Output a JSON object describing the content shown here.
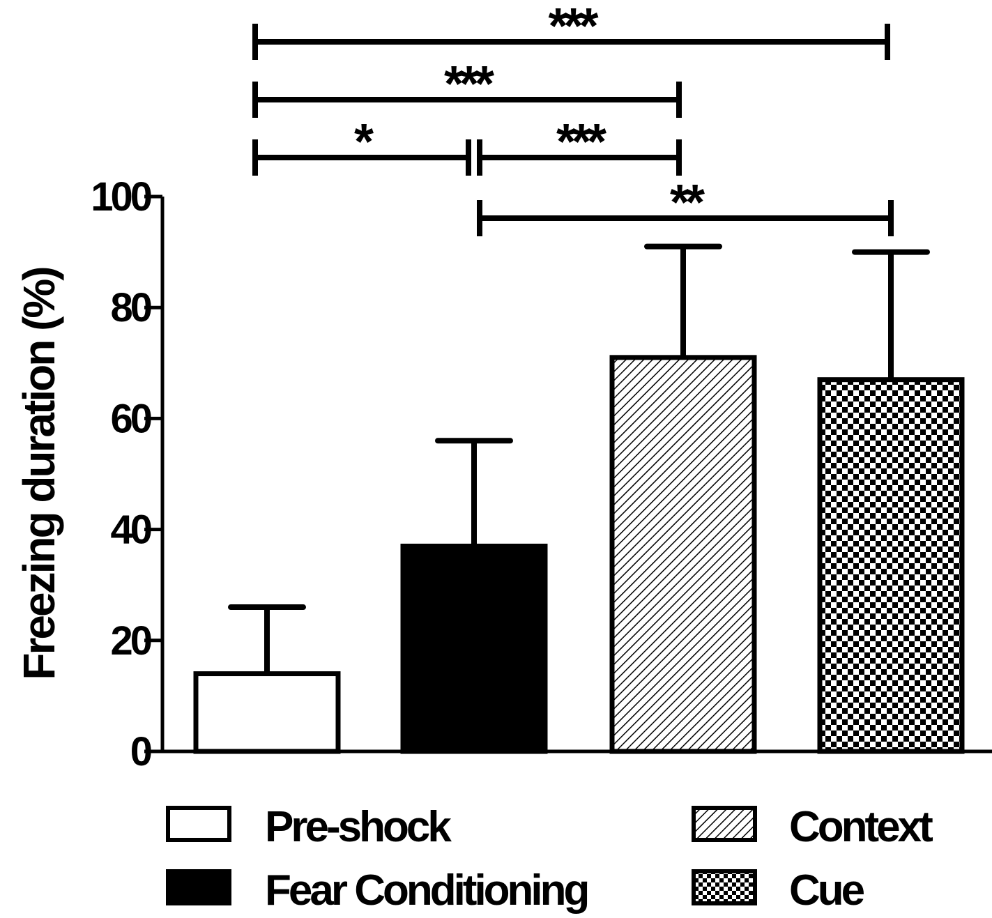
{
  "chart_data": {
    "type": "bar",
    "title": "",
    "xlabel": "",
    "ylabel": "Freezing duration (%)",
    "ylim": [
      0,
      100
    ],
    "yticks": [
      "0",
      "20",
      "40",
      "60",
      "80",
      "100"
    ],
    "categories": [
      "Pre-shock",
      "Fear Conditioning",
      "Context",
      "Cue"
    ],
    "values": [
      14,
      37,
      71,
      67
    ],
    "error_upper": [
      26,
      56,
      91,
      90
    ],
    "fills": [
      "white",
      "black",
      "diagonal-hatch",
      "checkerboard"
    ],
    "grid": false,
    "legend_position": "bottom",
    "legend": [
      {
        "label": "Pre-shock",
        "fill": "white"
      },
      {
        "label": "Context",
        "fill": "diagonal-hatch"
      },
      {
        "label": "Fear Conditioning",
        "fill": "black"
      },
      {
        "label": "Cue",
        "fill": "checkerboard"
      }
    ],
    "significance": [
      {
        "from": 0,
        "to": 3,
        "label": "***"
      },
      {
        "from": 0,
        "to": 2,
        "label": "***"
      },
      {
        "from": 0,
        "to": 1,
        "label": "*"
      },
      {
        "from": 1,
        "to": 2,
        "label": "***"
      },
      {
        "from": 1,
        "to": 3,
        "label": "**"
      }
    ]
  }
}
